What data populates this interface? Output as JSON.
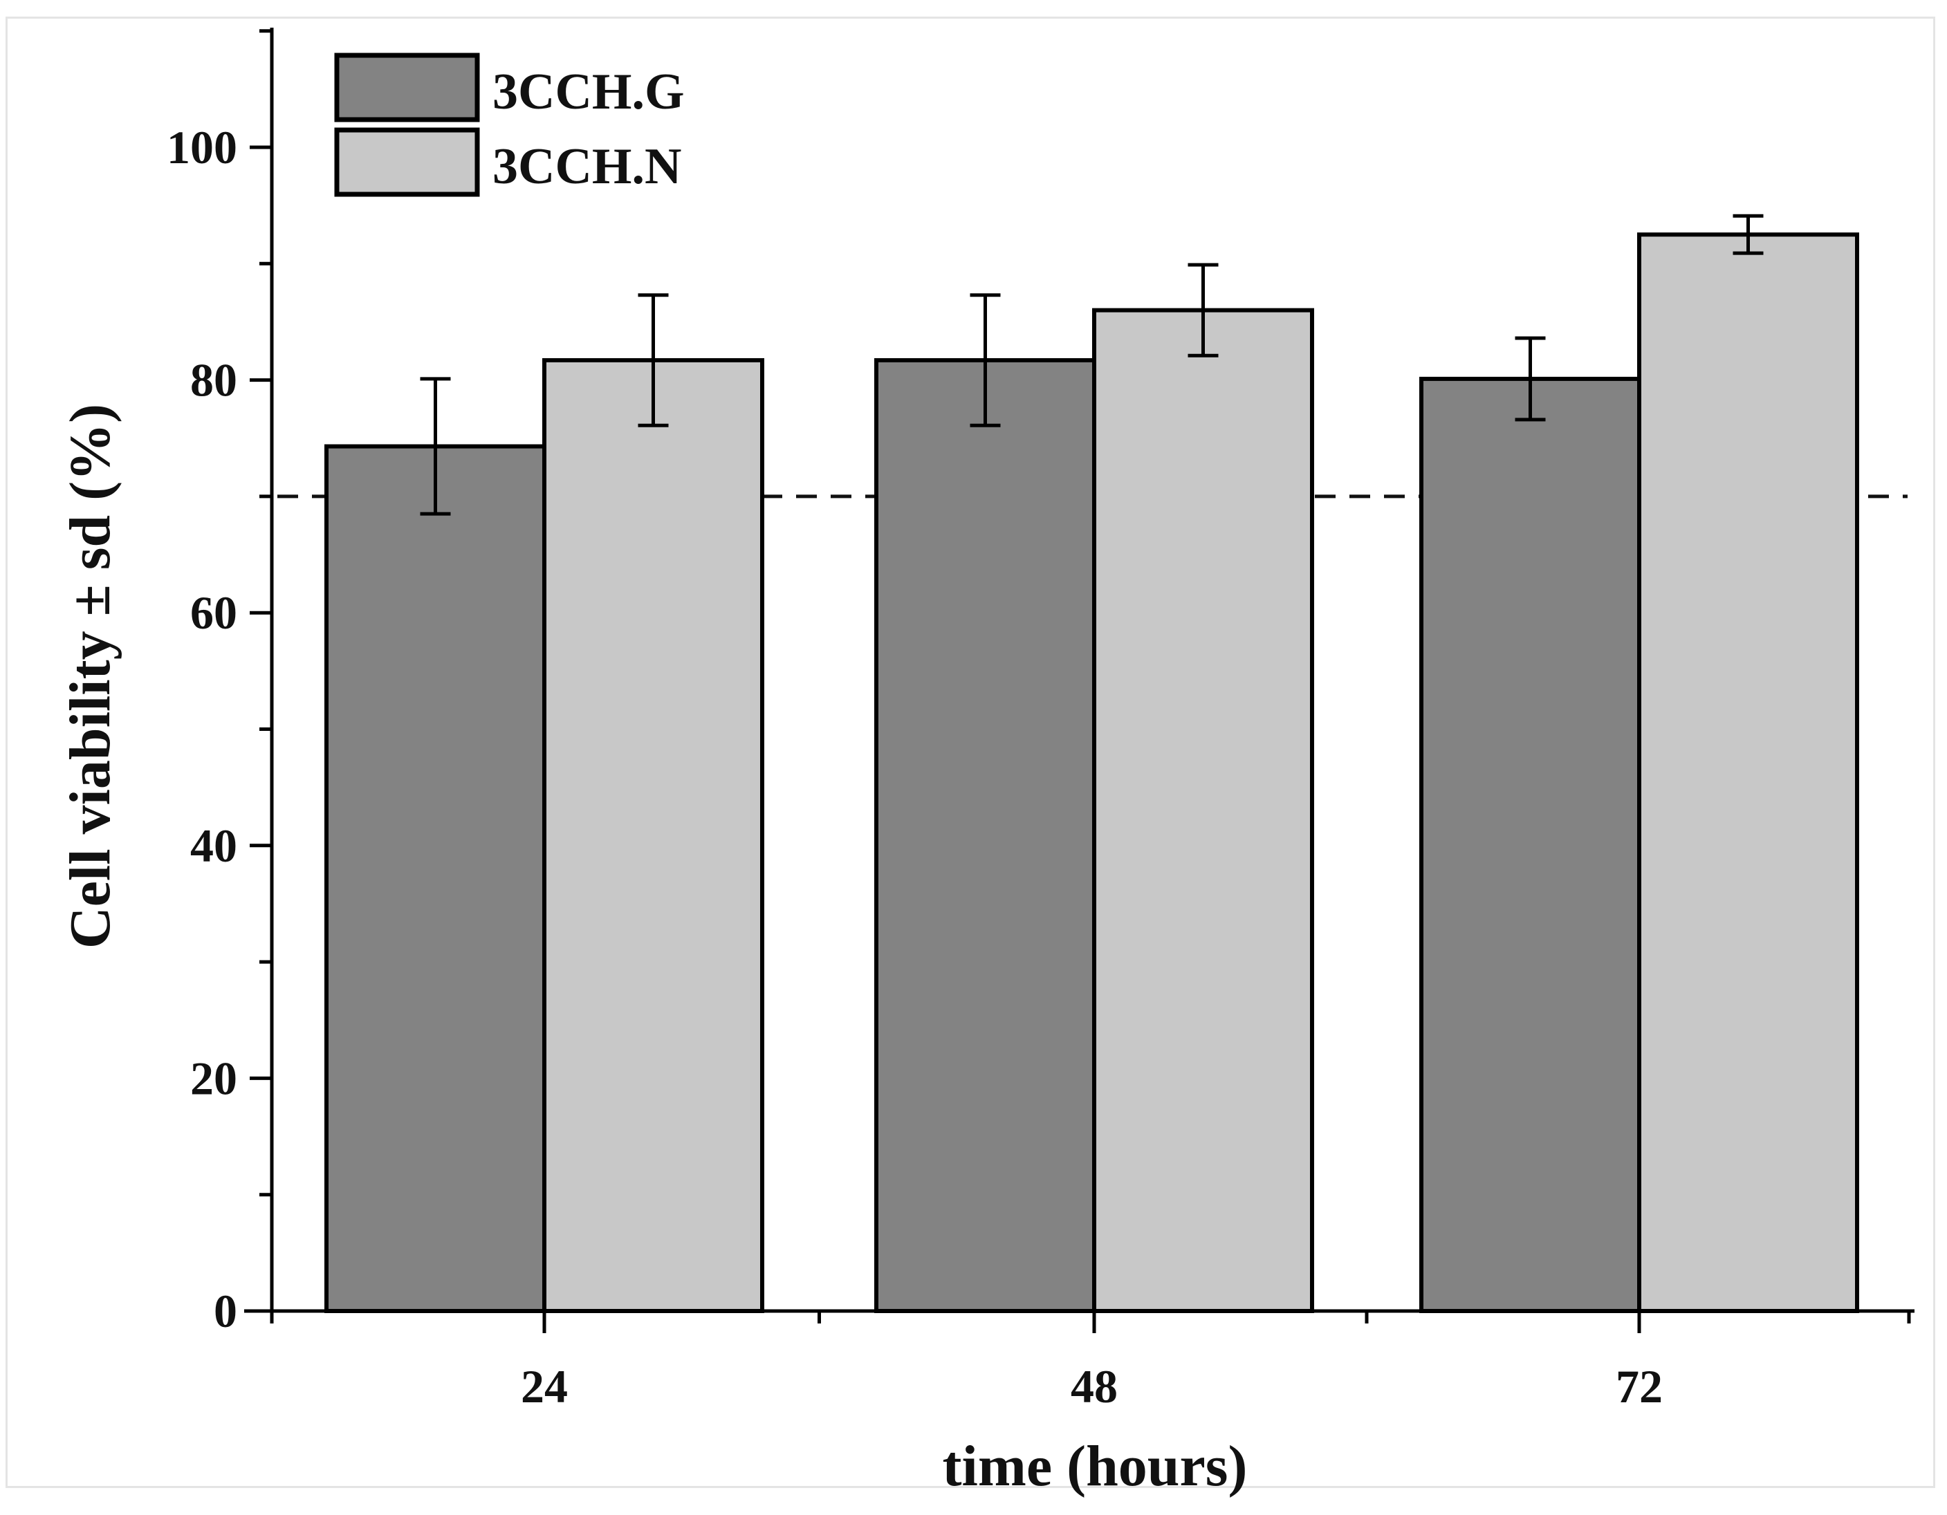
{
  "chart_data": {
    "type": "bar",
    "title": "",
    "xlabel": "time (hours)",
    "ylabel": "Cell viability ± sd (%)",
    "categories": [
      "24",
      "48",
      "72"
    ],
    "ylim": [
      0,
      110
    ],
    "yticks": [
      0,
      20,
      40,
      60,
      80,
      100
    ],
    "y_minor_step": 10,
    "grid": false,
    "legend_position": "top-left",
    "reference_line": {
      "y": 70,
      "style": "dashed"
    },
    "series": [
      {
        "name": "3CCH.G",
        "values": [
          74.3,
          81.7,
          80.1
        ],
        "errors": [
          5.8,
          5.6,
          3.5
        ],
        "color": "#838383"
      },
      {
        "name": "3CCH.N",
        "values": [
          81.7,
          86.0,
          92.5
        ],
        "errors": [
          5.6,
          3.9,
          1.6
        ],
        "color": "#c8c8c8"
      }
    ]
  }
}
